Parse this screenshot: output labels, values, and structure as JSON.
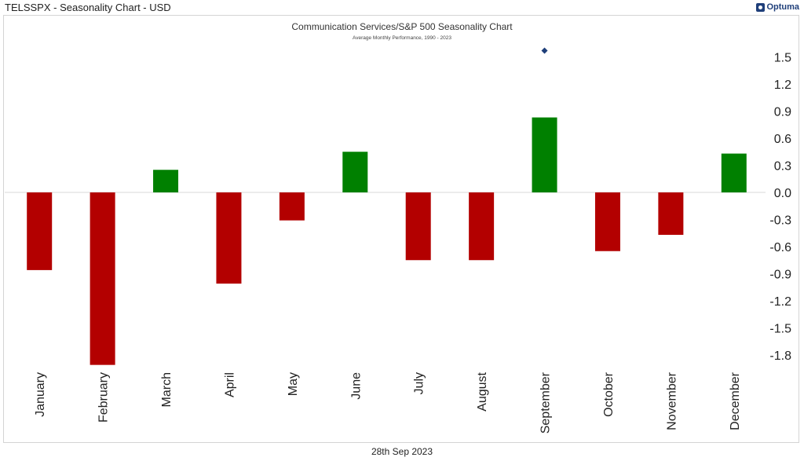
{
  "header": {
    "window_title": "TELSSPX - Seasonality Chart - USD",
    "brand": "Optuma"
  },
  "footer": {
    "date": "28th Sep 2023"
  },
  "chart_data": {
    "type": "bar",
    "title": "Communication Services/S&P 500 Seasonality Chart",
    "subtitle": "Average Monthly Performance, 1990 - 2023",
    "xlabel": "",
    "ylabel": "",
    "categories": [
      "January",
      "February",
      "March",
      "April",
      "May",
      "June",
      "July",
      "August",
      "September",
      "October",
      "November",
      "December"
    ],
    "values": [
      -0.86,
      -1.91,
      0.25,
      -1.01,
      -0.31,
      0.45,
      -0.75,
      -0.75,
      0.83,
      -0.65,
      -0.47,
      0.43
    ],
    "ylim": [
      -1.92,
      1.72
    ],
    "yticks": [
      "1.5",
      "1.2",
      "0.9",
      "0.6",
      "0.3",
      "0.0",
      "-0.3",
      "-0.6",
      "-0.9",
      "-1.2",
      "-1.5",
      "-1.8"
    ],
    "ytick_values": [
      1.5,
      1.2,
      0.9,
      0.6,
      0.3,
      0.0,
      -0.3,
      -0.6,
      -0.9,
      -1.2,
      -1.5,
      -1.8
    ],
    "marker": {
      "category": "September",
      "value": 1.57,
      "shape": "diamond",
      "color": "#1f3f7a"
    },
    "colors": {
      "positive": "#008000",
      "negative": "#b30000",
      "zero_line": "#d8d8d8"
    },
    "grid": false,
    "legend": "none"
  }
}
